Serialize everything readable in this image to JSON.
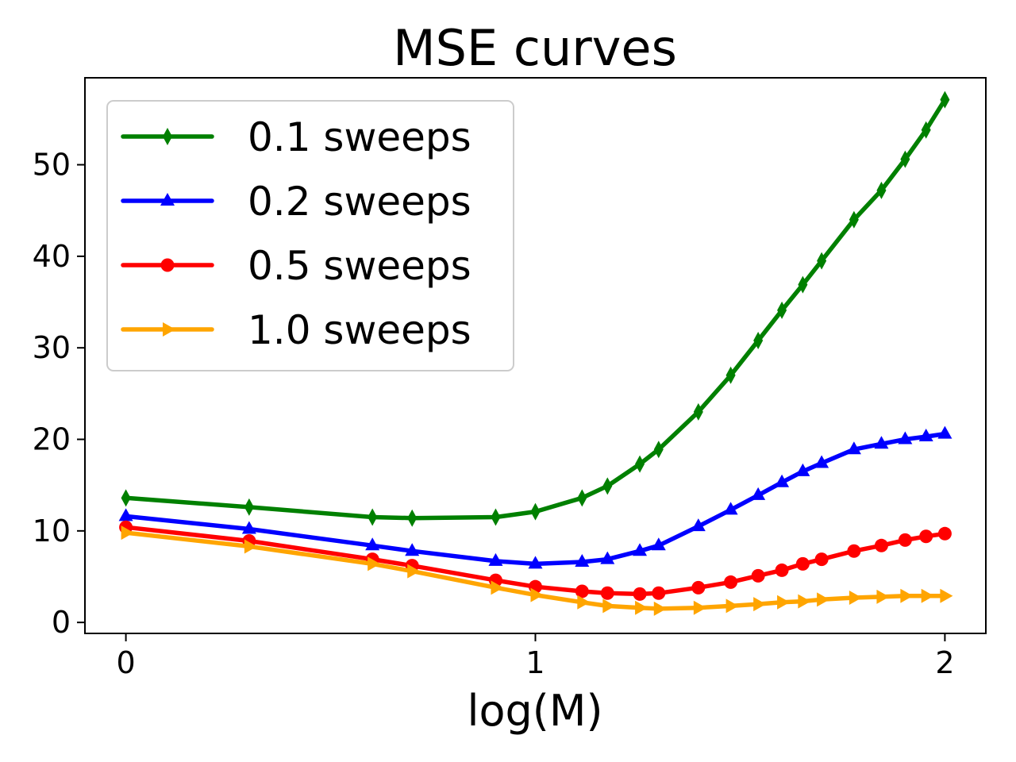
{
  "chart_data": {
    "type": "line",
    "title": "MSE curves",
    "xlabel": "log(M)",
    "ylabel": "",
    "xlim": [
      -0.1,
      2.1
    ],
    "ylim": [
      -1.2,
      59.5
    ],
    "xticks": [
      0,
      1,
      2
    ],
    "xtick_labels": [
      "0",
      "1",
      "2"
    ],
    "yticks": [
      0,
      10,
      20,
      30,
      40,
      50
    ],
    "ytick_labels": [
      "0",
      "10",
      "20",
      "30",
      "40",
      "50"
    ],
    "grid": false,
    "legend_position": "upper-left",
    "x": [
      0,
      0.301,
      0.602,
      0.699,
      0.903,
      1.0,
      1.114,
      1.176,
      1.255,
      1.301,
      1.398,
      1.477,
      1.544,
      1.602,
      1.653,
      1.699,
      1.778,
      1.845,
      1.903,
      1.954,
      2.0
    ],
    "series": [
      {
        "name": "0.1 sweeps",
        "color": "#008000",
        "marker": "thin-diamond",
        "values": [
          13.6,
          12.6,
          11.5,
          11.4,
          11.5,
          12.1,
          13.6,
          14.9,
          17.3,
          18.9,
          23.0,
          27.0,
          30.8,
          34.1,
          36.9,
          39.5,
          44.0,
          47.2,
          50.6,
          53.8,
          57.1
        ]
      },
      {
        "name": "0.2 sweeps",
        "color": "#0000ff",
        "marker": "triangle-up",
        "values": [
          11.6,
          10.2,
          8.4,
          7.8,
          6.7,
          6.4,
          6.6,
          6.9,
          7.8,
          8.4,
          10.5,
          12.3,
          13.9,
          15.3,
          16.5,
          17.4,
          18.9,
          19.5,
          20.0,
          20.3,
          20.6
        ]
      },
      {
        "name": "0.5 sweeps",
        "color": "#ff0000",
        "marker": "circle",
        "values": [
          10.4,
          8.9,
          6.9,
          6.2,
          4.6,
          3.9,
          3.4,
          3.2,
          3.1,
          3.2,
          3.8,
          4.4,
          5.1,
          5.7,
          6.4,
          6.9,
          7.8,
          8.4,
          9.0,
          9.4,
          9.7
        ]
      },
      {
        "name": "1.0 sweeps",
        "color": "#ffa500",
        "marker": "triangle-right",
        "values": [
          9.8,
          8.3,
          6.4,
          5.6,
          3.8,
          3.0,
          2.2,
          1.8,
          1.6,
          1.5,
          1.6,
          1.8,
          2.0,
          2.2,
          2.3,
          2.5,
          2.7,
          2.8,
          2.9,
          2.9,
          2.9
        ]
      }
    ]
  }
}
